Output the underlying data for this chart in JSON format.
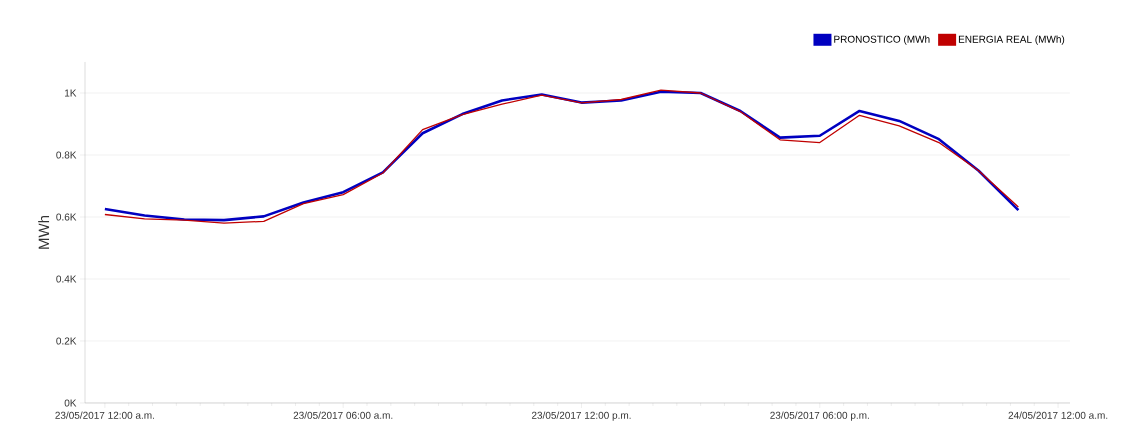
{
  "chart_data": {
    "type": "line",
    "ylabel": "MWh",
    "x": [
      "2017-05-23T00:00",
      "2017-05-23T01:00",
      "2017-05-23T02:00",
      "2017-05-23T03:00",
      "2017-05-23T04:00",
      "2017-05-23T05:00",
      "2017-05-23T06:00",
      "2017-05-23T07:00",
      "2017-05-23T08:00",
      "2017-05-23T09:00",
      "2017-05-23T10:00",
      "2017-05-23T11:00",
      "2017-05-23T12:00",
      "2017-05-23T13:00",
      "2017-05-23T14:00",
      "2017-05-23T15:00",
      "2017-05-23T16:00",
      "2017-05-23T17:00",
      "2017-05-23T18:00",
      "2017-05-23T19:00",
      "2017-05-23T20:00",
      "2017-05-23T21:00",
      "2017-05-23T22:00",
      "2017-05-23T23:00"
    ],
    "series": [
      {
        "name": "PRONOSTICO (MWh",
        "color": "#0000c0",
        "values": [
          626,
          605,
          592,
          590,
          602,
          647,
          680,
          744,
          870,
          932,
          976,
          995,
          969,
          976,
          1004,
          1000,
          942,
          856,
          862,
          942,
          910,
          851,
          749,
          622
        ]
      },
      {
        "name": "ENERGIA REAL (MWh)",
        "color": "#c00000",
        "values": [
          608,
          594,
          590,
          580,
          586,
          643,
          672,
          742,
          882,
          930,
          964,
          993,
          968,
          979,
          1009,
          1000,
          940,
          849,
          840,
          928,
          894,
          840,
          749,
          632
        ]
      }
    ],
    "xlim": [
      "2017-05-22T23:30",
      "2017-05-24T00:18"
    ],
    "ylim": [
      0,
      1100
    ],
    "xticks": [
      {
        "value": "2017-05-23T00:00",
        "label": "23/05/2017 12:00 a.m."
      },
      {
        "value": "2017-05-23T06:00",
        "label": "23/05/2017 06:00 a.m."
      },
      {
        "value": "2017-05-23T12:00",
        "label": "23/05/2017 12:00 p.m."
      },
      {
        "value": "2017-05-23T18:00",
        "label": "23/05/2017 06:00 p.m."
      },
      {
        "value": "2017-05-24T00:00",
        "label": "24/05/2017 12:00 a.m."
      }
    ],
    "yticks": [
      {
        "value": 0,
        "label": "0K"
      },
      {
        "value": 200,
        "label": "0.2K"
      },
      {
        "value": 400,
        "label": "0.4K"
      },
      {
        "value": 600,
        "label": "0.6K"
      },
      {
        "value": 800,
        "label": "0.8K"
      },
      {
        "value": 1000,
        "label": "1K"
      }
    ],
    "grid": "y",
    "legend": "top right",
    "marker": "none",
    "line_style": "solid"
  }
}
